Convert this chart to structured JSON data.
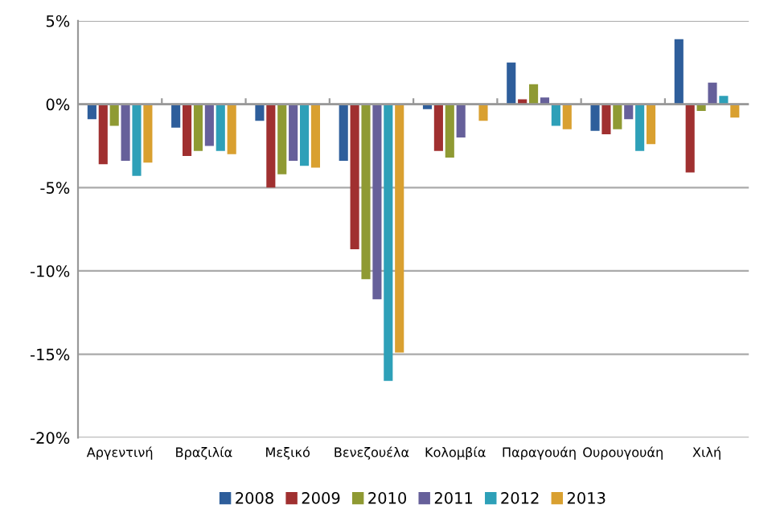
{
  "chart_data": {
    "type": "bar",
    "categories": [
      "Αργεντινή",
      "Βραζιλία",
      "Μεξικό",
      "Βενεζουέλα",
      "Κολομβία",
      "Παραγουάη",
      "Ουρουγουάη",
      "Χιλή"
    ],
    "series": [
      {
        "name": "2008",
        "color": "#2e5e9b",
        "values": [
          -0.9,
          -1.4,
          -1.0,
          -3.4,
          -0.3,
          2.5,
          -1.6,
          3.9
        ]
      },
      {
        "name": "2009",
        "color": "#a03030",
        "values": [
          -3.6,
          -3.1,
          -5.0,
          -8.7,
          -2.8,
          0.3,
          -1.8,
          -4.1
        ]
      },
      {
        "name": "2010",
        "color": "#8f9a33",
        "values": [
          -1.3,
          -2.8,
          -4.2,
          -10.5,
          -3.2,
          1.2,
          -1.5,
          -0.4
        ]
      },
      {
        "name": "2011",
        "color": "#66609a",
        "values": [
          -3.4,
          -2.5,
          -3.4,
          -11.7,
          -2.0,
          0.4,
          -0.9,
          1.3
        ]
      },
      {
        "name": "2012",
        "color": "#2ea0b8",
        "values": [
          -4.3,
          -2.8,
          -3.7,
          -16.6,
          0,
          -1.3,
          -2.8,
          0.5
        ]
      },
      {
        "name": "2013",
        "color": "#d9a030",
        "values": [
          -3.5,
          -3.0,
          -3.8,
          -14.9,
          -1.0,
          -1.5,
          -2.4,
          -0.8
        ]
      }
    ],
    "ylim": [
      -20,
      5
    ],
    "yticks": [
      {
        "value": -20,
        "label": "-20%"
      },
      {
        "value": -15,
        "label": "-15%"
      },
      {
        "value": -10,
        "label": "-10%"
      },
      {
        "value": -5,
        "label": "-5%"
      },
      {
        "value": 0,
        "label": "0%"
      },
      {
        "value": 5,
        "label": "5%"
      }
    ],
    "grid": "y",
    "legend": "bottom"
  }
}
